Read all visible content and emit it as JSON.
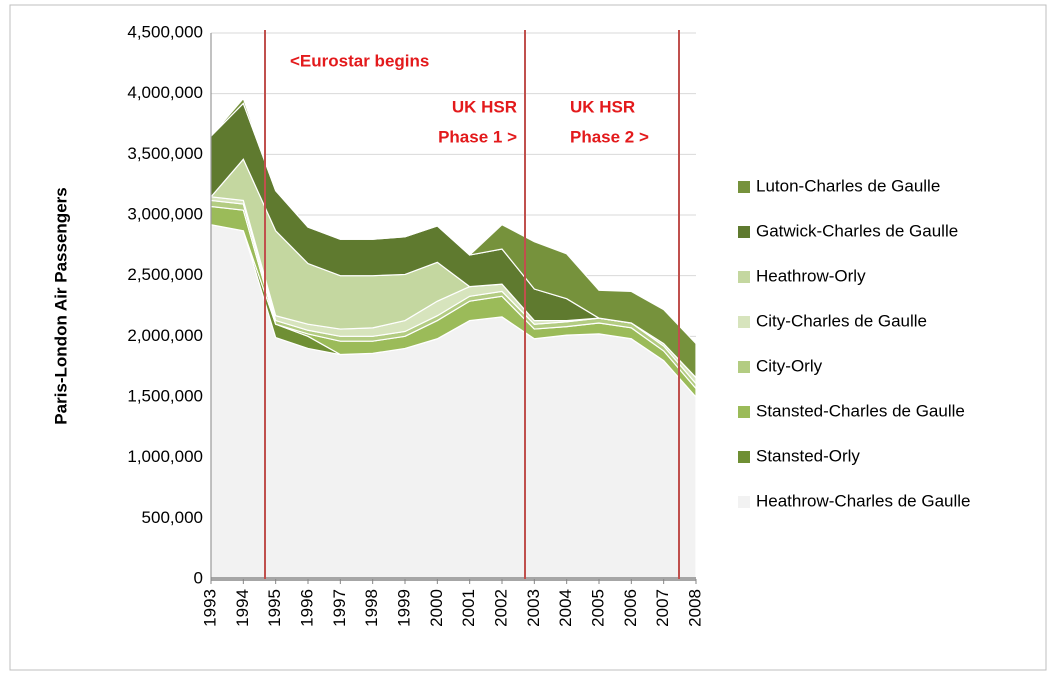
{
  "chart_data": {
    "type": "stacked-area",
    "y_label": "Paris-London Air Passengers",
    "categories": [
      "1993",
      "1994",
      "1995",
      "1996",
      "1997",
      "1998",
      "1999",
      "2000",
      "2001",
      "2002",
      "2003",
      "2004",
      "2005",
      "2006",
      "2007",
      "2008"
    ],
    "series": [
      {
        "name": "Heathrow-Charles de Gaulle",
        "color": "#f2f2f2",
        "values": [
          2920000,
          2870000,
          1990000,
          1900000,
          1850000,
          1860000,
          1900000,
          1980000,
          2130000,
          2160000,
          1980000,
          2010000,
          2020000,
          1980000,
          1800000,
          1500000
        ]
      },
      {
        "name": "Stansted-Orly",
        "color": "#6f8f34",
        "values": [
          0,
          0,
          110000,
          100000,
          0,
          0,
          0,
          0,
          0,
          0,
          0,
          0,
          0,
          0,
          0,
          0
        ]
      },
      {
        "name": "Stansted-Charles de Gaulle",
        "color": "#9bbb59",
        "values": [
          150000,
          170000,
          0,
          20000,
          110000,
          100000,
          100000,
          150000,
          160000,
          170000,
          80000,
          70000,
          90000,
          90000,
          80000,
          70000
        ]
      },
      {
        "name": "City-Orly",
        "color": "#b3cc82",
        "values": [
          50000,
          50000,
          30000,
          30000,
          40000,
          40000,
          40000,
          40000,
          40000,
          40000,
          40000,
          40000,
          40000,
          40000,
          40000,
          40000
        ]
      },
      {
        "name": "City-Charles de Gaulle",
        "color": "#d7e4bd",
        "values": [
          30000,
          30000,
          40000,
          50000,
          60000,
          70000,
          90000,
          120000,
          80000,
          60000,
          30000,
          10000,
          0,
          0,
          20000,
          50000
        ]
      },
      {
        "name": "Heathrow-Orly",
        "color": "#c4d7a0",
        "values": [
          0,
          340000,
          700000,
          500000,
          440000,
          430000,
          380000,
          320000,
          0,
          0,
          0,
          0,
          0,
          0,
          0,
          0
        ]
      },
      {
        "name": "Gatwick-Charles de Gaulle",
        "color": "#5f7a2f",
        "values": [
          500000,
          460000,
          330000,
          300000,
          300000,
          300000,
          310000,
          300000,
          260000,
          290000,
          260000,
          180000,
          0,
          0,
          0,
          0
        ]
      },
      {
        "name": "Luton-Charles de Gaulle",
        "color": "#76923c",
        "values": [
          0,
          40000,
          0,
          0,
          0,
          0,
          0,
          0,
          0,
          200000,
          390000,
          370000,
          230000,
          260000,
          280000,
          280000
        ]
      }
    ],
    "ylim": [
      0,
      4500000
    ],
    "yticks": [
      0,
      {
        "value": 500000,
        "label": "500,000"
      },
      {
        "value": 1000000,
        "label": "1,000,000"
      },
      {
        "value": 1500000,
        "label": "1,500,000"
      },
      {
        "value": 2000000,
        "label": "2,000,000"
      },
      {
        "value": 2500000,
        "label": "2,500,000"
      },
      {
        "value": 3000000,
        "label": "3,000,000"
      },
      {
        "value": 3500000,
        "label": "3,500,000"
      },
      {
        "value": 4000000,
        "label": "4,000,000"
      },
      {
        "value": 4500000,
        "label": "4,500,000"
      }
    ],
    "grid": true,
    "legend": "right",
    "annotations": [
      {
        "lines": [
          "<Eurostar begins"
        ]
      },
      {
        "lines": [
          "UK HSR",
          "Phase 1 >"
        ]
      },
      {
        "lines": [
          "UK HSR",
          "Phase 2 >"
        ]
      }
    ]
  }
}
